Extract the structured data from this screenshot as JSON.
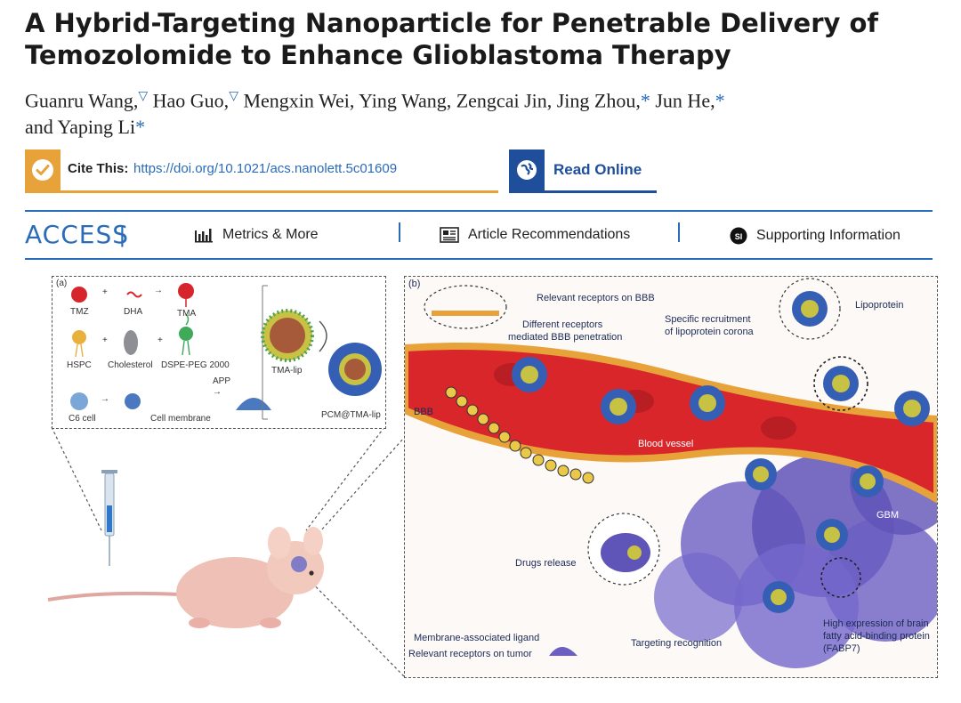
{
  "title": {
    "line1": "A Hybrid-Targeting Nanoparticle for Penetrable Delivery of",
    "line2": "Temozolomide to Enhance Glioblastoma Therapy"
  },
  "authors": {
    "line1": [
      "Guanru Wang,",
      "Hao Guo,",
      "Mengxin Wei, Ying Wang, Zengcai Jin, Jing Zhou,",
      "Jun He,"
    ],
    "line2": "and Yaping Li",
    "equal_mark": "▽",
    "corr_mark": "*"
  },
  "cite": {
    "label": "Cite This:",
    "url": "https://doi.org/10.1021/acs.nanolett.5c01609"
  },
  "read_online": {
    "label": "Read Online"
  },
  "access": {
    "label": "ACCESS",
    "pipe": "|",
    "metrics": "Metrics & More",
    "recommendations": "Article Recommendations",
    "supporting": "Supporting Information",
    "si_badge": "SI"
  },
  "figure": {
    "panel_a": {
      "tag": "(a)",
      "row1": [
        "TMZ",
        "DHA",
        "TMA"
      ],
      "row2": [
        "HSPC",
        "Cholesterol",
        "DSPE-PEG 2000"
      ],
      "row3": [
        "C6 cell",
        "Cell membrane",
        "APP"
      ],
      "tma_lip": "TMA-lip",
      "pcm": "PCM@TMA-lip",
      "plus": "+",
      "arrow": "→"
    },
    "panel_b": {
      "tag": "(b)",
      "receptors_bbb": "Relevant receptors on BBB",
      "different_receptors": "Different receptors",
      "mediated": "mediated BBB penetration",
      "specific": "Specific recruitment",
      "corona": "of lipoprotein corona",
      "lipoprotein": "Lipoprotein",
      "bbb": "BBB",
      "blood_vessel": "Blood vessel",
      "gbm": "GBM",
      "drugs_release": "Drugs release",
      "membrane_ligand": "Membrane-associated ligand",
      "receptors_tumor": "Relevant receptors on tumor",
      "targeting": "Targeting recognition",
      "fabp1": "High expression of brain",
      "fabp2": "fatty acid-binding protein",
      "fabp3": "(FABP7)"
    }
  },
  "colors": {
    "accent_blue": "#2b6cb8",
    "cite_orange": "#e8a23a",
    "read_blue": "#1f4f9a",
    "vessel_red": "#d8262b",
    "tumor_purple": "#6b5fc4"
  }
}
